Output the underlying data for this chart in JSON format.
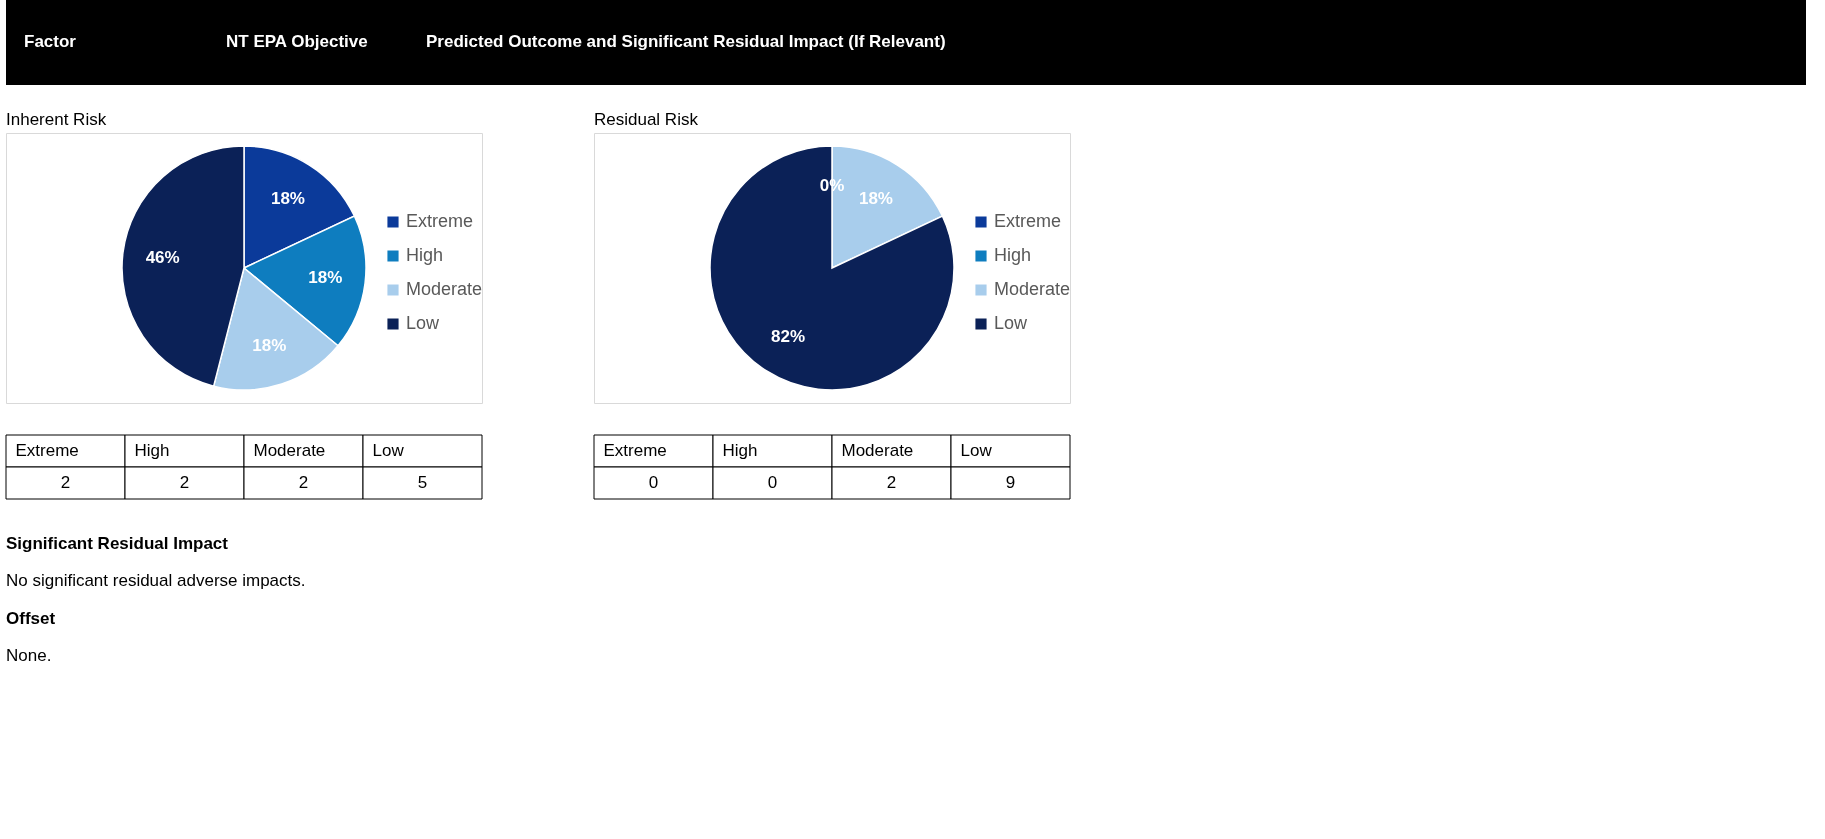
{
  "chart_data": [
    {
      "type": "pie",
      "title": "Inherent Risk",
      "categories": [
        "Extreme",
        "High",
        "Moderate",
        "Low"
      ],
      "values": [
        18,
        18,
        18,
        46
      ],
      "colors": [
        "#0b3a9a",
        "#0e7dbf",
        "#a8cdec",
        "#0b2157"
      ],
      "value_labels": [
        "18%",
        "18%",
        "18%",
        "46%"
      ],
      "legend": "right",
      "annotations": [
        "Factor",
        "NT EPA Objective",
        "Predicted Outcome and Significant Residual Impact (If Relevant)",
        {
          "text": "2",
          "x": "Extreme"
        },
        {
          "text": "2",
          "x": "High"
        },
        {
          "text": "2",
          "x": "Moderate"
        },
        {
          "text": "5",
          "x": "Low"
        }
      ]
    },
    {
      "type": "pie",
      "title": "Residual Risk",
      "categories": [
        "Extreme",
        "High",
        "Moderate",
        "Low"
      ],
      "values": [
        0,
        0,
        18,
        82
      ],
      "colors": [
        "#0b3a9a",
        "#0e7dbf",
        "#a8cdec",
        "#0b2157"
      ],
      "value_labels": [
        "0%",
        null,
        "18%",
        "82%"
      ],
      "legend": "right",
      "annotations": [
        "Significant Residual Impact",
        "No significant residual adverse impacts.",
        "Offset",
        "None.",
        {
          "text": "0",
          "x": "Extreme"
        },
        {
          "text": "0",
          "x": "High"
        },
        {
          "text": "2",
          "x": "Moderate"
        },
        {
          "text": "9",
          "x": "Low"
        }
      ]
    }
  ]
}
